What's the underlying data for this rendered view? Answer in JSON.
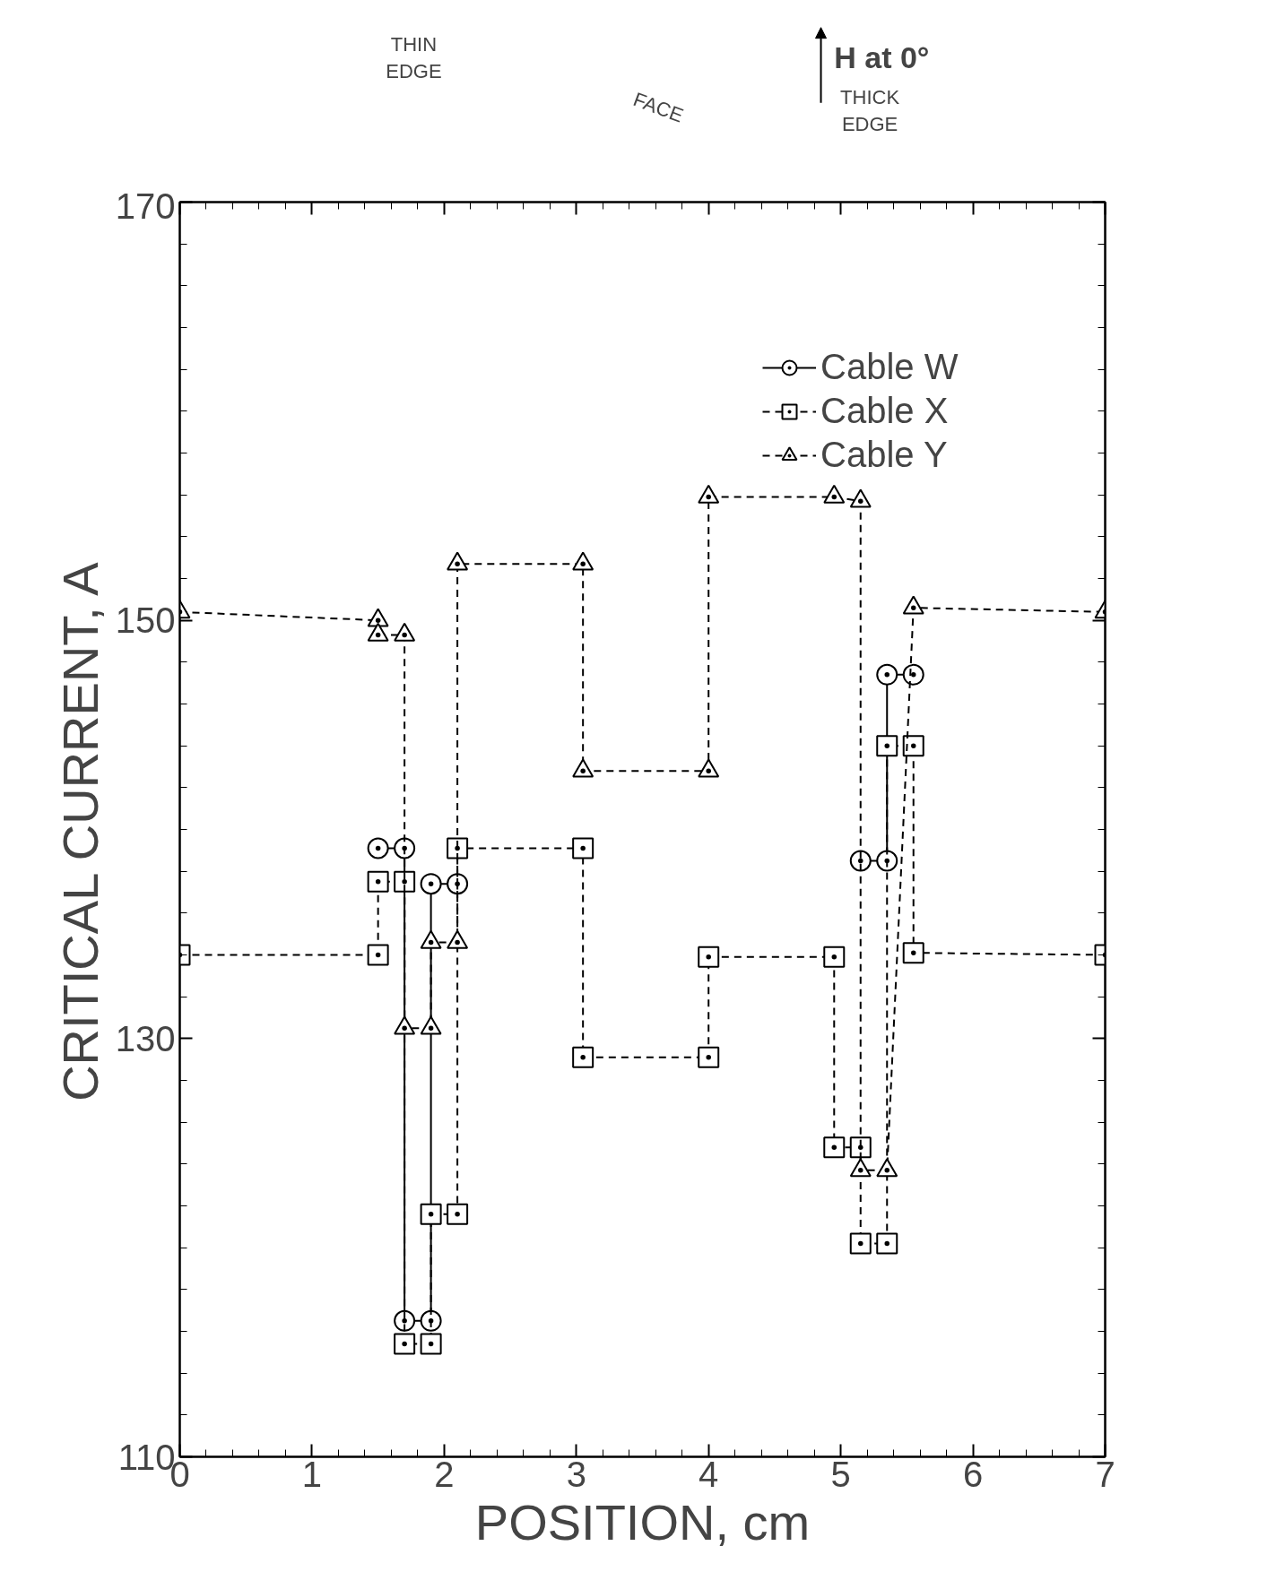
{
  "chart_data": {
    "type": "line",
    "xlabel": "POSITION, cm",
    "ylabel": "CRITICAL CURRENT, A",
    "xlim": [
      0,
      7
    ],
    "ylim": [
      110,
      170
    ],
    "xticks": [
      0,
      1,
      2,
      3,
      4,
      5,
      6,
      7
    ],
    "yticks": [
      110,
      130,
      150,
      170
    ],
    "grid": false,
    "legend": "top right",
    "annotations": [
      "THIN EDGE",
      "FACE",
      "THICK EDGE",
      "H at 0°"
    ],
    "series": [
      {
        "name": "Cable W",
        "color": "#000000",
        "marker": "circle",
        "line_style": "solid",
        "x": [
          1.5,
          1.7,
          1.7,
          1.9,
          1.9,
          2.1,
          3.0,
          5.15,
          5.35,
          5.35,
          5.55
        ],
        "values": [
          139.1,
          139.1,
          116.5,
          116.5,
          137.4,
          137.4,
          null,
          138.5,
          138.5,
          147.4,
          147.4
        ]
      },
      {
        "name": "Cable X",
        "color": "#000000",
        "marker": "square",
        "line_style": "dashed",
        "x": [
          0,
          1.5,
          1.5,
          1.7,
          1.7,
          1.9,
          1.9,
          2.1,
          2.1,
          3.05,
          3.05,
          4.0,
          4.0,
          4.95,
          4.95,
          5.15,
          5.15,
          5.35,
          5.35,
          5.55,
          5.55,
          7
        ],
        "values": [
          134.0,
          134.0,
          137.5,
          137.5,
          115.4,
          115.4,
          121.6,
          121.6,
          139.1,
          139.1,
          129.1,
          129.1,
          133.9,
          133.9,
          124.8,
          124.8,
          120.2,
          120.2,
          144.0,
          144.0,
          134.1,
          134.0
        ]
      },
      {
        "name": "Cable Y",
        "color": "#000000",
        "marker": "triangle",
        "line_style": "dashed",
        "x": [
          0,
          1.5,
          1.5,
          1.7,
          1.7,
          1.9,
          1.9,
          2.1,
          2.1,
          3.05,
          3.05,
          4.0,
          4.0,
          4.95,
          5.15,
          5.15,
          5.35,
          5.55,
          7
        ],
        "values": [
          150.4,
          150.0,
          149.3,
          149.3,
          130.5,
          130.5,
          134.6,
          134.6,
          152.7,
          152.7,
          142.8,
          142.8,
          155.9,
          155.9,
          155.7,
          123.7,
          123.7,
          150.6,
          150.4
        ]
      }
    ]
  }
}
